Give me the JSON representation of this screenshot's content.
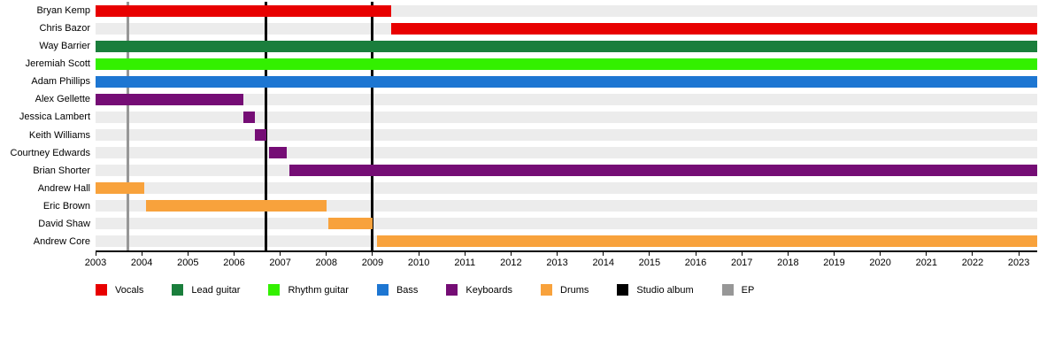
{
  "chart_data": {
    "type": "timeline",
    "title": "",
    "x_axis": {
      "min": 2003,
      "max": 2023.4,
      "tick_start": 2003,
      "tick_end": 2023,
      "tick_step": 1
    },
    "members": [
      {
        "name": "Bryan Kemp",
        "role": "Vocals",
        "start": 2003,
        "end": 2009.4
      },
      {
        "name": "Chris Bazor",
        "role": "Vocals",
        "start": 2009.4,
        "end": 2023.4
      },
      {
        "name": "Way Barrier",
        "role": "Lead guitar",
        "start": 2003,
        "end": 2023.4
      },
      {
        "name": "Jeremiah Scott",
        "role": "Rhythm guitar",
        "start": 2003,
        "end": 2023.4
      },
      {
        "name": "Adam Phillips",
        "role": "Bass",
        "start": 2003,
        "end": 2023.4
      },
      {
        "name": "Alex Gellette",
        "role": "Keyboards",
        "start": 2003,
        "end": 2006.2
      },
      {
        "name": "Jessica Lambert",
        "role": "Keyboards",
        "start": 2006.2,
        "end": 2006.45
      },
      {
        "name": "Keith Williams",
        "role": "Keyboards",
        "start": 2006.45,
        "end": 2006.7
      },
      {
        "name": "Courtney Edwards",
        "role": "Keyboards",
        "start": 2006.75,
        "end": 2007.15
      },
      {
        "name": "Brian Shorter",
        "role": "Keyboards",
        "start": 2007.2,
        "end": 2023.4
      },
      {
        "name": "Andrew Hall",
        "role": "Drums",
        "start": 2003,
        "end": 2004.05
      },
      {
        "name": "Eric Brown",
        "role": "Drums",
        "start": 2004.1,
        "end": 2008.0
      },
      {
        "name": "David Shaw",
        "role": "Drums",
        "start": 2008.05,
        "end": 2009.0
      },
      {
        "name": "Andrew Core",
        "role": "Drums",
        "start": 2009.1,
        "end": 2023.4
      }
    ],
    "event_lines": [
      {
        "label": "EP",
        "x": 2003.7
      },
      {
        "label": "Studio album",
        "x": 2006.7
      },
      {
        "label": "Studio album",
        "x": 2009.0
      }
    ],
    "legend": [
      {
        "label": "Vocals",
        "color": "#e80000"
      },
      {
        "label": "Lead guitar",
        "color": "#1a7e3c"
      },
      {
        "label": "Rhythm guitar",
        "color": "#33f000"
      },
      {
        "label": "Bass",
        "color": "#1d76d2"
      },
      {
        "label": "Keyboards",
        "color": "#750d75"
      },
      {
        "label": "Drums",
        "color": "#f8a23c"
      },
      {
        "label": "Studio album",
        "color": "#000000"
      },
      {
        "label": "EP",
        "color": "#979797"
      }
    ],
    "colors": {
      "Vocals": "#e80000",
      "Lead guitar": "#1a7e3c",
      "Rhythm guitar": "#33f000",
      "Bass": "#1d76d2",
      "Keyboards": "#750d75",
      "Drums": "#f8a23c",
      "Studio album": "#000000",
      "EP": "#979797"
    },
    "track_color": "#ececec",
    "background": "#ffffff"
  }
}
